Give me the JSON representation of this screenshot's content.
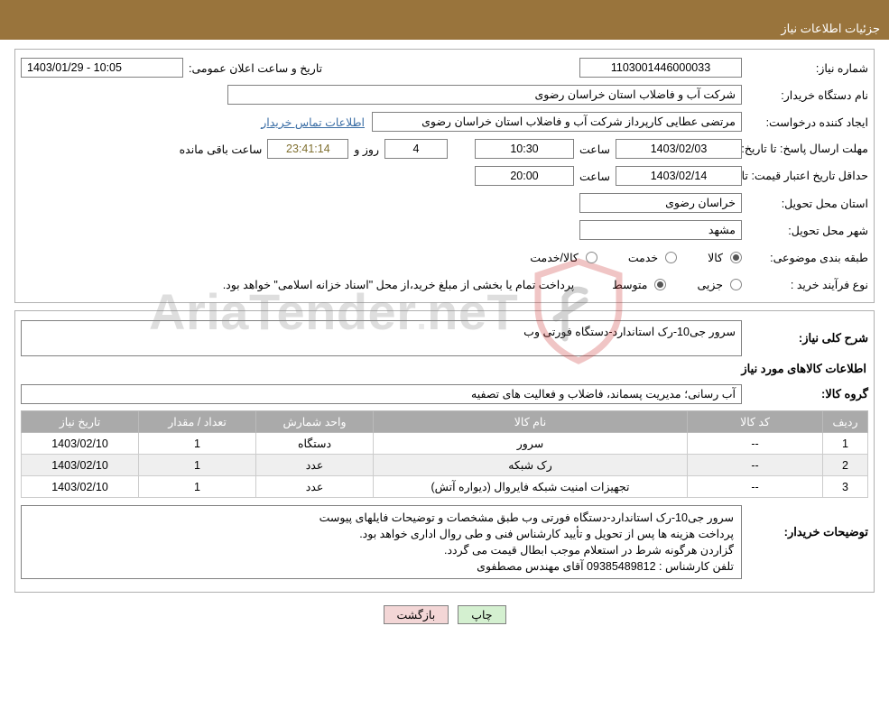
{
  "header": {
    "title": "جزئیات اطلاعات نیاز"
  },
  "fields": {
    "need_no_label": "شماره نیاز:",
    "need_no": "1103001446000033",
    "announce_label": "تاریخ و ساعت اعلان عمومی:",
    "announce_value": "1403/01/29 - 10:05",
    "buyer_org_label": "نام دستگاه خریدار:",
    "buyer_org": "شرکت آب و فاضلاب استان خراسان رضوی",
    "requester_label": "ایجاد کننده درخواست:",
    "requester": "مرتضی عطایی کارپرداز شرکت آب و فاضلاب استان خراسان رضوی",
    "buyer_contact_link": "اطلاعات تماس خریدار",
    "reply_deadline_label": "مهلت ارسال پاسخ:",
    "until_label": "تا تاریخ:",
    "reply_date": "1403/02/03",
    "time_label": "ساعت",
    "reply_time": "10:30",
    "days_label": "روز و",
    "days_value": "4",
    "countdown": "23:41:14",
    "remaining_label": "ساعت باقی مانده",
    "price_validity_label": "حداقل تاریخ اعتبار قیمت:",
    "price_date": "1403/02/14",
    "price_time": "20:00",
    "province_label": "استان محل تحویل:",
    "province": "خراسان رضوی",
    "city_label": "شهر محل تحویل:",
    "city": "مشهد",
    "category_label": "طبقه بندی موضوعی:",
    "cat_goods": "کالا",
    "cat_service": "خدمت",
    "cat_goods_service": "کالا/خدمت",
    "purchase_type_label": "نوع فرآیند خرید :",
    "pt_partial": "جزیی",
    "pt_medium": "متوسط",
    "purchase_note": "پرداخت تمام یا بخشی از مبلغ خرید،از محل \"اسناد خزانه اسلامی\" خواهد بود."
  },
  "need": {
    "overall_label": "شرح کلی نیاز:",
    "overall_text": "سرور جی10-رک استاندارد-دستگاه فورتی وب",
    "items_title": "اطلاعات کالاهای مورد نیاز",
    "group_label": "گروه کالا:",
    "group_value": "آب رسانی؛ مدیریت پسماند، فاضلاب و فعالیت های تصفیه",
    "columns": [
      "ردیف",
      "کد کالا",
      "نام کالا",
      "واحد شمارش",
      "تعداد / مقدار",
      "تاریخ نیاز"
    ],
    "col_widths": [
      "50px",
      "150px",
      "auto",
      "130px",
      "130px",
      "130px"
    ],
    "rows": [
      [
        "1",
        "--",
        "سرور",
        "دستگاه",
        "1",
        "1403/02/10"
      ],
      [
        "2",
        "--",
        "رک شبکه",
        "عدد",
        "1",
        "1403/02/10"
      ],
      [
        "3",
        "--",
        "تجهیزات امنیت شبکه فایروال (دیواره آتش)",
        "عدد",
        "1",
        "1403/02/10"
      ]
    ],
    "buyer_notes_label": "توضیحات خریدار:",
    "buyer_notes_lines": [
      "سرور جی10-رک استاندارد-دستگاه فورتی وب طبق مشخصات و توضیحات فایلهای پیوست",
      "پرداخت هزینه ها پس از تحویل و تأیید کارشناس فنی و طی روال اداری خواهد بود.",
      "گزاردن هرگونه شرط در استعلام موجب ابطال قیمت می گردد.",
      "تلفن کارشناس : 09385489812 آقای مهندس مصطفوی"
    ]
  },
  "buttons": {
    "print": "چاپ",
    "back": "بازگشت"
  },
  "colors": {
    "header_bg": "#99743c",
    "border": "#b0b0b0",
    "th_bg": "#aaaaaa",
    "link": "#3b6ea5",
    "btn_print_bg": "#d4f0d0",
    "btn_back_bg": "#f3d6d6",
    "countdown_color": "#807030"
  }
}
